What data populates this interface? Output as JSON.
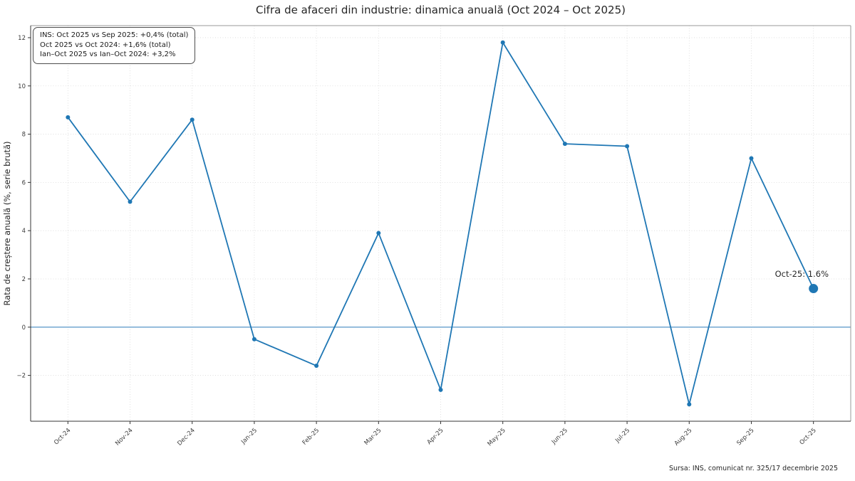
{
  "title": "Cifra de afaceri din industrie: dinamica anuală (Oct 2024 – Oct 2025)",
  "annotation_box": {
    "lines": [
      "INS: Oct 2025 vs Sep 2025: +0,4% (total)",
      "Oct 2025 vs Oct 2024: +1,6% (total)",
      "Ian–Oct 2025 vs Ian–Oct 2024: +3,2%"
    ]
  },
  "point_annotation": "Oct-25: 1.6%",
  "source_note": "Sursa: INS, comunicat nr. 325/17 decembrie 2025",
  "chart_data": {
    "type": "line",
    "title": "Cifra de afaceri din industrie: dinamica anuală (Oct 2024 – Oct 2025)",
    "xlabel": "",
    "ylabel": "Rata de creștere anuală (%, serie brută)",
    "categories": [
      "Oct-24",
      "Nov-24",
      "Dec-24",
      "Jan-25",
      "Feb-25",
      "Mar-25",
      "Apr-25",
      "May-25",
      "Jun-25",
      "Jul-25",
      "Aug-25",
      "Sep-25",
      "Oct-25"
    ],
    "values": [
      8.7,
      5.2,
      8.6,
      -0.5,
      -1.6,
      3.9,
      -2.6,
      11.8,
      7.6,
      7.5,
      -3.2,
      7.0,
      1.6
    ],
    "highlight_last_point": true,
    "y_ticks": [
      -2,
      0,
      2,
      4,
      6,
      8,
      10,
      12
    ],
    "ylim": [
      -3.9,
      12.5
    ],
    "grid": true,
    "zero_line": true,
    "legend_position": "none",
    "colors": {
      "line": "#1f77b4",
      "marker": "#1f77b4",
      "zero_line": "#5696c7",
      "grid": "#d9d9d9",
      "spine_dark": "#343434",
      "spine_light": "#9a9a9a",
      "tick_text": "#3a3a3a",
      "title_text": "#262626"
    }
  }
}
